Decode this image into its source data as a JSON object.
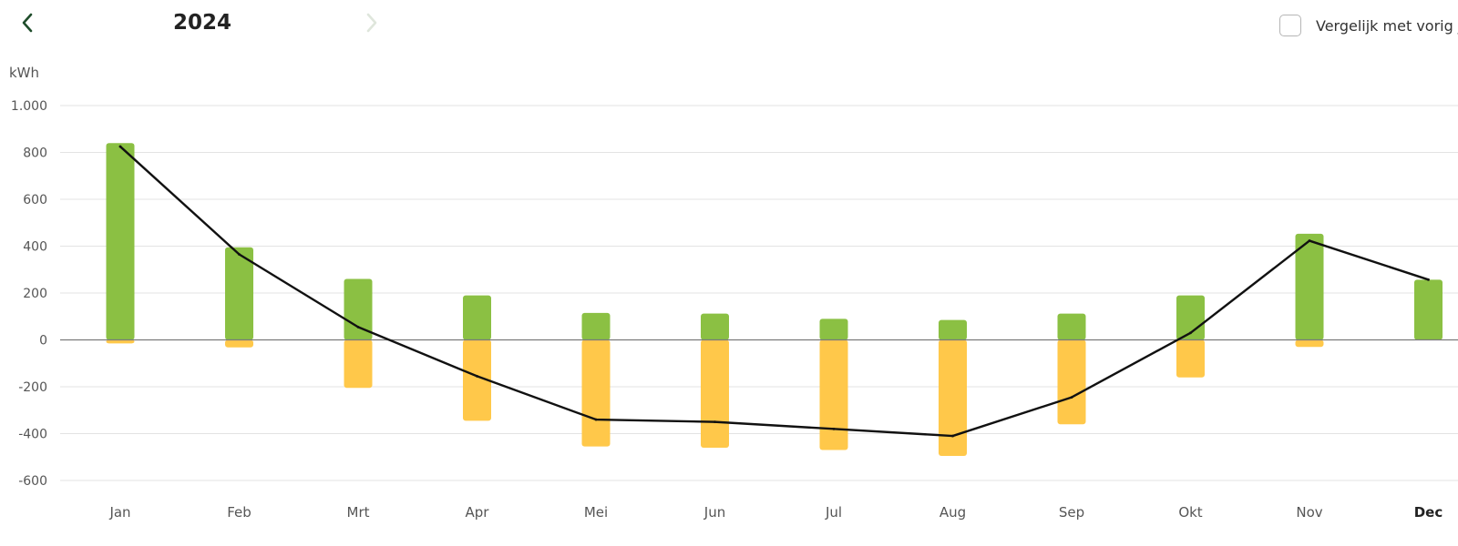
{
  "header": {
    "year": "2024",
    "compare_label": "Vergelijk met vorig jaar",
    "unit_label": "kWh"
  },
  "colors": {
    "consumption": "#8bc043",
    "production": "#ffc84a",
    "net_line": "#111111",
    "nav_active": "#1f4d2b",
    "nav_disabled": "#dfe6dc"
  },
  "icons": {
    "prev": "chevron-left-icon",
    "next": "chevron-right-icon"
  },
  "chart_data": {
    "type": "bar",
    "categories": [
      "Jan",
      "Feb",
      "Mrt",
      "Apr",
      "Mei",
      "Jun",
      "Jul",
      "Aug",
      "Sep",
      "Okt",
      "Nov",
      "Dec"
    ],
    "highlight_category": "Dec",
    "y_ticks": [
      -600,
      -400,
      -200,
      0,
      200,
      400,
      600,
      800,
      1000
    ],
    "y_tick_labels": [
      "-600",
      "-400",
      "-200",
      "0",
      "200",
      "400",
      "600",
      "800",
      "1.000"
    ],
    "ylim": [
      -620,
      1000
    ],
    "ylabel": "kWh",
    "grid": true,
    "series": [
      {
        "key": "consumption",
        "type": "bar",
        "values": [
          840,
          395,
          260,
          190,
          115,
          112,
          90,
          85,
          112,
          190,
          453,
          257
        ]
      },
      {
        "key": "production",
        "type": "bar",
        "values": [
          -15,
          -32,
          -205,
          -345,
          -455,
          -460,
          -470,
          -495,
          -360,
          -160,
          -30,
          0
        ]
      },
      {
        "key": "net",
        "type": "line",
        "values": [
          825,
          365,
          55,
          -155,
          -340,
          -350,
          -380,
          -410,
          -245,
          30,
          423,
          257
        ]
      }
    ]
  }
}
